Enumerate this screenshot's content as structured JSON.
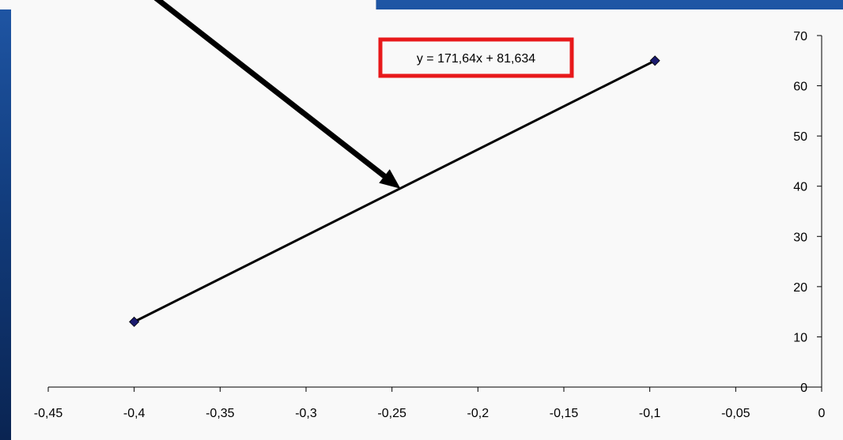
{
  "chart_data": {
    "type": "scatter",
    "title": "",
    "xlabel": "",
    "ylabel": "",
    "xlim": [
      -0.45,
      0
    ],
    "ylim": [
      0,
      70
    ],
    "x_ticks": [
      -0.45,
      -0.4,
      -0.35,
      -0.3,
      -0.25,
      -0.2,
      -0.15,
      -0.1,
      -0.05,
      0
    ],
    "y_ticks": [
      0,
      10,
      20,
      30,
      40,
      50,
      60,
      70
    ],
    "x_tick_labels": [
      "-0,45",
      "-0,4",
      "-0,35",
      "-0,3",
      "-0,25",
      "-0,2",
      "-0,15",
      "-0,1",
      "-0,05",
      "0"
    ],
    "y_tick_labels": [
      "0",
      "10",
      "20",
      "30",
      "40",
      "50",
      "60",
      "70"
    ],
    "y_axis_position": "right",
    "grid": false,
    "legend": "none",
    "series": [
      {
        "x": [
          -0.4,
          -0.097
        ],
        "y": [
          13,
          65
        ],
        "marker": "diamond",
        "color": "#1a1a6e"
      }
    ],
    "trendline": {
      "equation": "y = 171,64x + 81,634",
      "x_range": [
        -0.4,
        -0.097
      ],
      "color": "#000000"
    },
    "annotations": {
      "equation_box_color": "#e8191b",
      "arrow": {
        "points_to": [
          -0.245,
          39.5
        ],
        "color": "#000000"
      }
    }
  },
  "colors": {
    "panel": "#f9f9f9",
    "background": "#123d7e",
    "axis": "#000000"
  }
}
